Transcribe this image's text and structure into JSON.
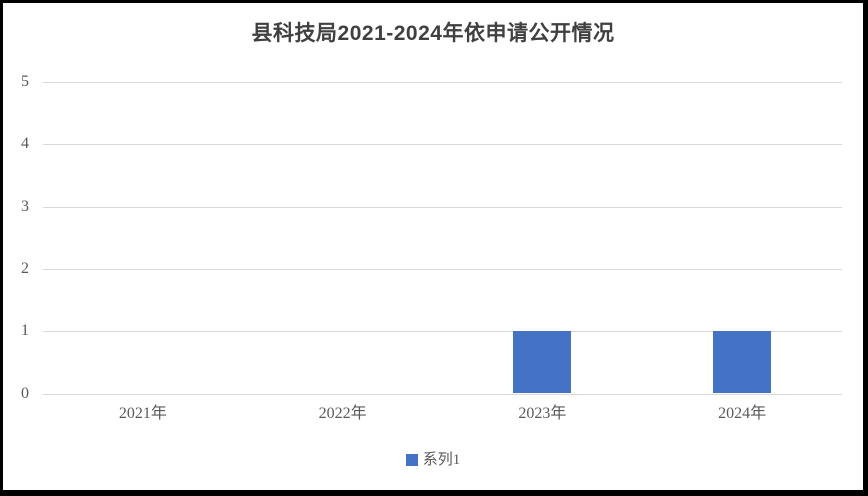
{
  "chart_data": {
    "type": "bar",
    "title": "县科技局2021-2024年依申请公开情况",
    "categories": [
      "2021年",
      "2022年",
      "2023年",
      "2024年"
    ],
    "series": [
      {
        "name": "系列1",
        "values": [
          0,
          0,
          1,
          1
        ]
      }
    ],
    "xlabel": "",
    "ylabel": "",
    "ylim": [
      0,
      5
    ],
    "yticks": [
      0,
      1,
      2,
      3,
      4,
      5
    ],
    "grid": "horizontal",
    "legend_position": "bottom-center",
    "bar_color": "#4472C4",
    "gridline_color": "#D9D9D9",
    "axis_label_color": "#595959",
    "title_color": "#404040",
    "frame_color": "#000000",
    "background_color": "#FFFFFF"
  }
}
